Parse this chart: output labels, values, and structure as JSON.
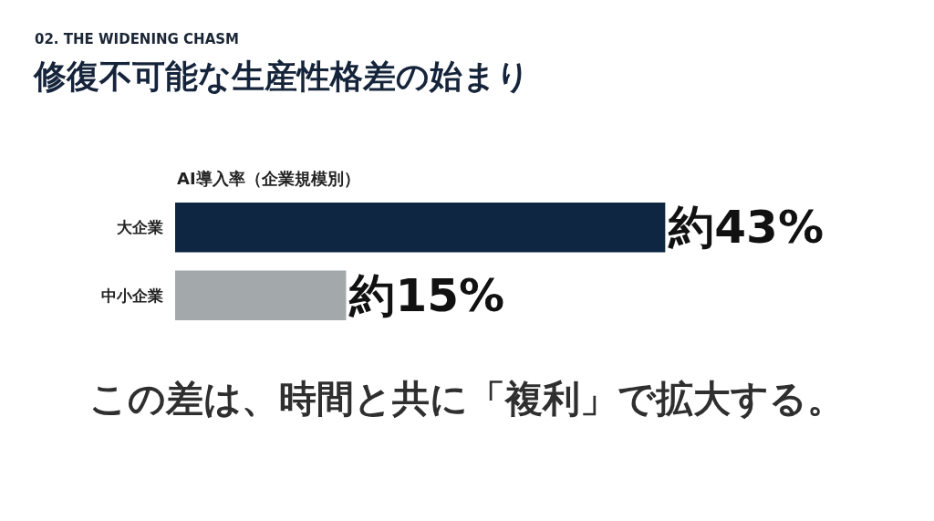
{
  "chart_data": {
    "type": "bar",
    "orientation": "horizontal",
    "title": "修復不可能な生産性格差の始まり",
    "subtitle": "02. THE WIDENING CHASM",
    "xlabel": "AI導入率（企業規模別）",
    "categories": [
      "大企業",
      "中小企業"
    ],
    "values": [
      43,
      15
    ],
    "colors": [
      "#0f2642",
      "#a3a9ab"
    ],
    "value_labels": [
      "約43%",
      "約15%"
    ],
    "tick_labels": "y",
    "annotations": [
      "この差は、時間と共に「複利」で拡大する。"
    ]
  }
}
